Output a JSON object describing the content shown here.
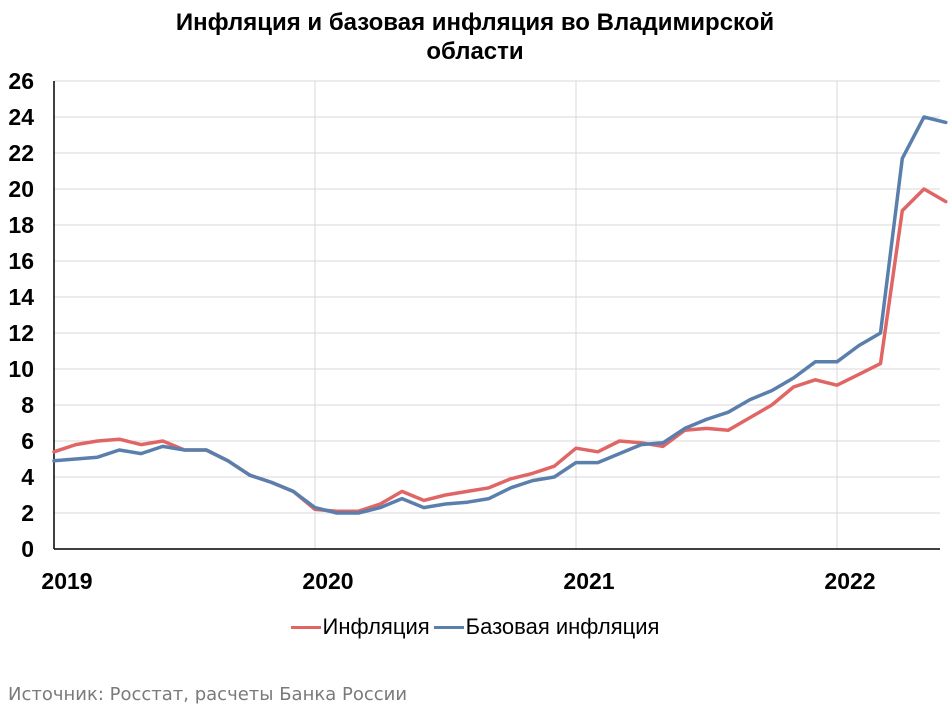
{
  "title_lines": [
    "Инфляция и базовая инфляция во Владимирской",
    "области"
  ],
  "source": "Источник: Росстат, расчеты Банка России",
  "chart_data": {
    "type": "line",
    "title": "Инфляция и базовая инфляция во Владимирской области",
    "x_start": "2019-01",
    "x_tick_labels": [
      "2019",
      "2020",
      "2021",
      "2022"
    ],
    "x_tick_indices": [
      0,
      12,
      24,
      36
    ],
    "y_ticks": [
      0,
      2,
      4,
      6,
      8,
      10,
      12,
      14,
      16,
      18,
      20,
      22,
      24,
      26
    ],
    "ylim": [
      0,
      26
    ],
    "grid": true,
    "legend_position": "bottom",
    "series": [
      {
        "name": "Инфляция",
        "color": "#e06666",
        "values": [
          5.4,
          5.8,
          6.0,
          6.1,
          5.8,
          6.0,
          5.5,
          5.5,
          4.9,
          4.1,
          3.7,
          3.2,
          2.2,
          2.1,
          2.1,
          2.5,
          3.2,
          2.7,
          3.0,
          3.2,
          3.4,
          3.9,
          4.2,
          4.6,
          5.6,
          5.4,
          6.0,
          5.9,
          5.7,
          6.6,
          6.7,
          6.6,
          7.3,
          8.0,
          9.0,
          9.4,
          9.1,
          9.7,
          10.3,
          18.8,
          20.0,
          19.3
        ]
      },
      {
        "name": "Базовая инфляция",
        "color": "#5a7fad",
        "values": [
          4.9,
          5.0,
          5.1,
          5.5,
          5.3,
          5.7,
          5.5,
          5.5,
          4.9,
          4.1,
          3.7,
          3.2,
          2.3,
          2.0,
          2.0,
          2.3,
          2.8,
          2.3,
          2.5,
          2.6,
          2.8,
          3.4,
          3.8,
          4.0,
          4.8,
          4.8,
          5.3,
          5.8,
          5.9,
          6.7,
          7.2,
          7.6,
          8.3,
          8.8,
          9.5,
          10.4,
          10.4,
          11.3,
          12.0,
          21.7,
          24.0,
          23.7
        ]
      }
    ]
  }
}
